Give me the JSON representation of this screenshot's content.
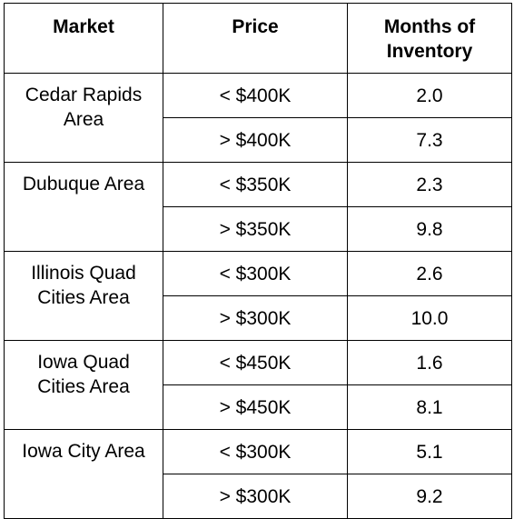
{
  "table": {
    "headers": {
      "market": "Market",
      "price": "Price",
      "months_line1": "Months of",
      "months_line2": "Inventory"
    },
    "rows": [
      {
        "market_line1": "Cedar Rapids",
        "market_line2": "Area",
        "tiers": [
          {
            "price": "< $400K",
            "months": "2.0"
          },
          {
            "price": "> $400K",
            "months": "7.3"
          }
        ]
      },
      {
        "market_line1": "Dubuque Area",
        "market_line2": "",
        "tiers": [
          {
            "price": "< $350K",
            "months": "2.3"
          },
          {
            "price": "> $350K",
            "months": "9.8"
          }
        ]
      },
      {
        "market_line1": "Illinois Quad",
        "market_line2": "Cities Area",
        "tiers": [
          {
            "price": "< $300K",
            "months": "2.6"
          },
          {
            "price": "> $300K",
            "months": "10.0"
          }
        ]
      },
      {
        "market_line1": "Iowa Quad",
        "market_line2": "Cities Area",
        "tiers": [
          {
            "price": "< $450K",
            "months": "1.6"
          },
          {
            "price": "> $450K",
            "months": "8.1"
          }
        ]
      },
      {
        "market_line1": "Iowa City Area",
        "market_line2": "",
        "tiers": [
          {
            "price": "< $300K",
            "months": "5.1"
          },
          {
            "price": "> $300K",
            "months": "9.2"
          }
        ]
      }
    ]
  }
}
